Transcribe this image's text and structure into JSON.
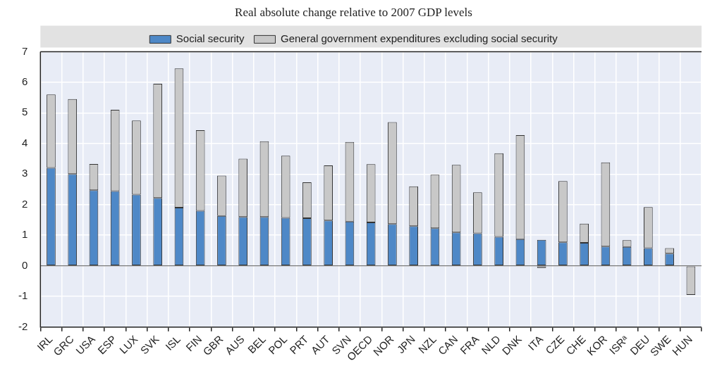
{
  "chart_data": {
    "type": "bar",
    "subtitle": "Real absolute change relative to 2007 GDP levels",
    "categories": [
      "IRL",
      "GRC",
      "USA",
      "ESP",
      "LUX",
      "SVK",
      "ISL",
      "FIN",
      "GBR",
      "AUS",
      "BEL",
      "POL",
      "PRT",
      "AUT",
      "SVN",
      "OECD",
      "NOR",
      "JPN",
      "NZL",
      "CAN",
      "FRA",
      "NLD",
      "DNK",
      "ITA",
      "CZE",
      "CHE",
      "KOR",
      "ISRᵃ",
      "DEU",
      "SWE",
      "HUN"
    ],
    "stacked": true,
    "series": [
      {
        "name": "Social security",
        "color": "#4e88c7",
        "values": [
          3.2,
          3.0,
          2.47,
          2.44,
          2.33,
          2.22,
          1.9,
          1.8,
          1.63,
          1.6,
          1.6,
          1.57,
          1.56,
          1.48,
          1.45,
          1.42,
          1.37,
          1.3,
          1.23,
          1.09,
          1.06,
          0.95,
          0.87,
          0.85,
          0.77,
          0.75,
          0.63,
          0.62,
          0.58,
          0.4,
          0
        ]
      },
      {
        "name": "General government expenditures excluding social security",
        "color": "#c8c8c8",
        "values": [
          2.4,
          2.45,
          0.86,
          2.66,
          2.42,
          3.73,
          4.55,
          2.63,
          1.32,
          1.9,
          2.47,
          2.03,
          1.17,
          1.8,
          2.6,
          1.9,
          3.33,
          1.3,
          1.75,
          2.21,
          1.34,
          2.73,
          3.4,
          -0.07,
          2.0,
          0.63,
          2.75,
          0.22,
          1.34,
          0.18,
          -0.95
        ]
      }
    ],
    "ylim": [
      -2,
      7
    ],
    "yticks": [
      -2,
      -1,
      0,
      1,
      2,
      3,
      4,
      5,
      6,
      7
    ],
    "grid": true,
    "legend": "top"
  }
}
